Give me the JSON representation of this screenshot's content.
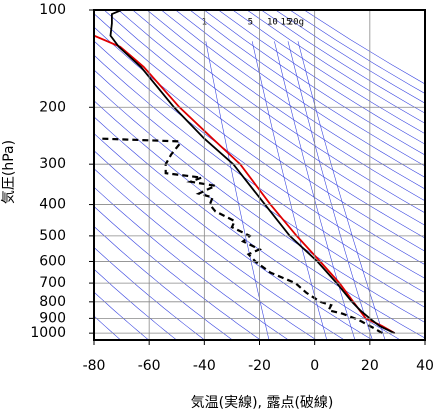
{
  "chart_data": {
    "type": "sounding",
    "x_label": "気温(実線), 露点(破線)",
    "y_label": "気圧(hPa)",
    "xlim": [
      -80,
      40
    ],
    "xticks": [
      -80,
      -60,
      -40,
      -20,
      0,
      20,
      40
    ],
    "ylim": [
      100,
      1050
    ],
    "yticks": [
      100,
      200,
      300,
      400,
      500,
      600,
      700,
      800,
      900,
      1000
    ],
    "log_y": true,
    "grid": true,
    "mixing_ratio_lines": [
      {
        "value": 1,
        "label": "1"
      },
      {
        "value": 5,
        "label": "5"
      },
      {
        "value": 10,
        "label": "10"
      },
      {
        "value": 15,
        "label": "15"
      },
      {
        "value": 20,
        "label": "20g"
      }
    ],
    "series": [
      {
        "color": "#e00000",
        "dashed": false,
        "pressure": [
          1000,
          950,
          900,
          800,
          700,
          600,
          500,
          400,
          300,
          250,
          200,
          150,
          130,
          120
        ],
        "values": [
          29,
          24.5,
          18.5,
          14,
          9,
          2,
          -6.5,
          -16,
          -27,
          -37,
          -49,
          -62,
          -70.5,
          -80
        ]
      },
      {
        "color": "#000000",
        "dashed": false,
        "pressure": [
          1000,
          950,
          900,
          850,
          800,
          700,
          600,
          500,
          400,
          300,
          250,
          200,
          150,
          130,
          120,
          110,
          103,
          100
        ],
        "values": [
          29,
          23.5,
          20,
          16.5,
          13.5,
          8,
          1,
          -9,
          -18,
          -29.5,
          -40,
          -51,
          -63,
          -71,
          -74,
          -73.5,
          -73.5,
          -70
        ]
      },
      {
        "color": "#000000",
        "dashed": true,
        "pressure": [
          1000,
          970,
          950,
          920,
          900,
          870,
          850,
          820,
          800,
          750,
          700,
          650,
          600,
          570,
          550,
          520,
          500,
          470,
          450,
          420,
          400,
          380,
          370,
          350,
          340,
          330,
          320,
          300,
          280,
          260,
          255,
          250
        ],
        "values": [
          24.5,
          22,
          20,
          17,
          14.5,
          10,
          5,
          6,
          2,
          -3,
          -7,
          -16,
          -21.5,
          -24,
          -20,
          -26,
          -23.5,
          -30,
          -29,
          -36,
          -38,
          -37,
          -42,
          -36,
          -45,
          -41,
          -54,
          -54,
          -52,
          -49,
          -49,
          -78
        ]
      }
    ]
  }
}
